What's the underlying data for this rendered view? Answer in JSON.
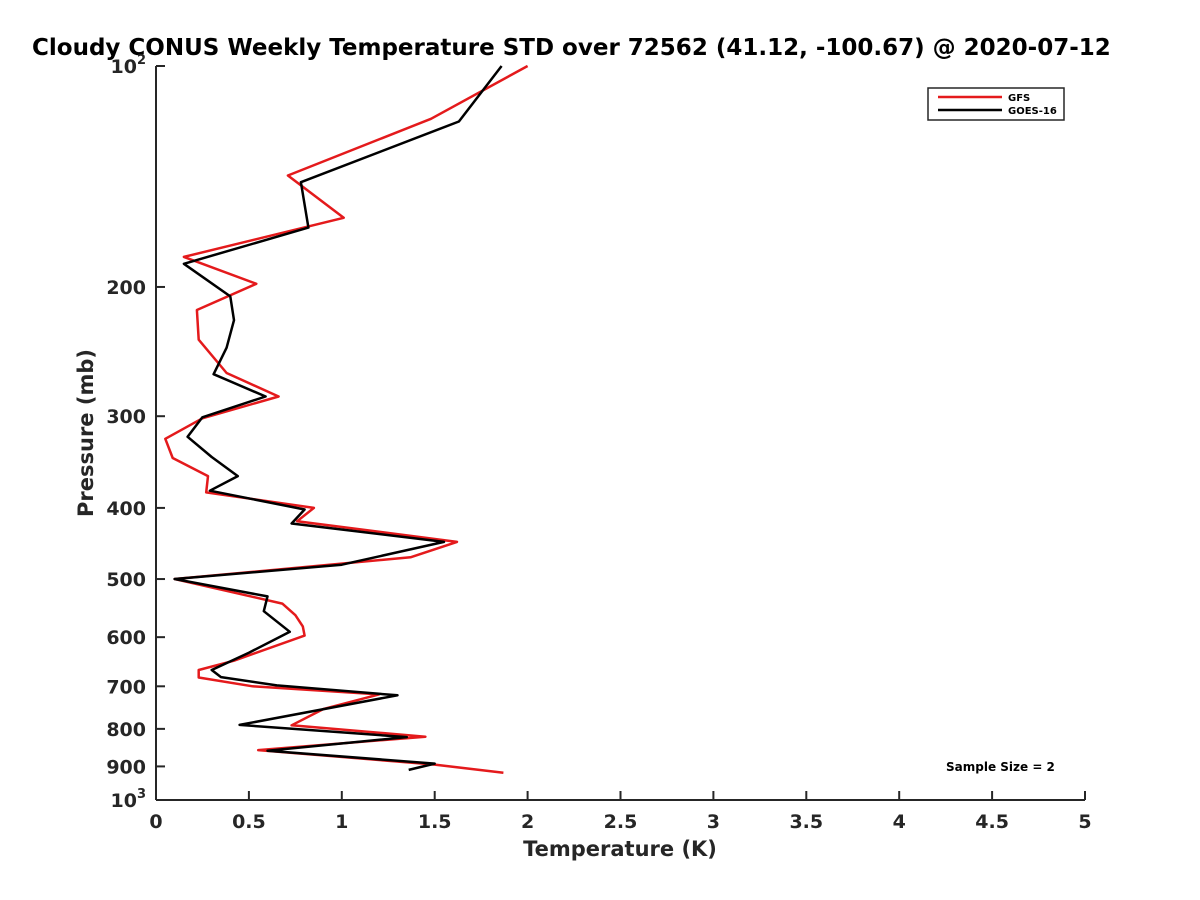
{
  "chart_data": {
    "type": "line",
    "title": "Cloudy CONUS Weekly Temperature STD over 72562 (41.12, -100.67) @ 2020-07-12",
    "xlabel": "Temperature (K)",
    "ylabel": "Pressure (mb)",
    "xlim": [
      0,
      5
    ],
    "ylim": [
      100,
      1000
    ],
    "y_scale": "log",
    "y_reversed": true,
    "grid": false,
    "legend_position": "top-right",
    "x_ticks": [
      "0",
      "0.5",
      "1",
      "1.5",
      "2",
      "2.5",
      "3",
      "3.5",
      "4",
      "4.5",
      "5"
    ],
    "x_tick_values": [
      0,
      0.5,
      1,
      1.5,
      2,
      2.5,
      3,
      3.5,
      4,
      4.5,
      5
    ],
    "y_ticks": [
      {
        "value": 100,
        "label": "10",
        "sup": "2"
      },
      {
        "value": 200,
        "label": "200",
        "sup": ""
      },
      {
        "value": 300,
        "label": "300",
        "sup": ""
      },
      {
        "value": 400,
        "label": "400",
        "sup": ""
      },
      {
        "value": 500,
        "label": "500",
        "sup": ""
      },
      {
        "value": 600,
        "label": "600",
        "sup": ""
      },
      {
        "value": 700,
        "label": "700",
        "sup": ""
      },
      {
        "value": 800,
        "label": "800",
        "sup": ""
      },
      {
        "value": 900,
        "label": "900",
        "sup": ""
      },
      {
        "value": 1000,
        "label": "10",
        "sup": "3"
      }
    ],
    "annotation": "Sample Size = 2",
    "series": [
      {
        "name": "GFS",
        "color": "#e41a1c",
        "points": [
          [
            2.0,
            100
          ],
          [
            1.48,
            118
          ],
          [
            0.71,
            141
          ],
          [
            1.01,
            161
          ],
          [
            0.15,
            182
          ],
          [
            0.54,
            198
          ],
          [
            0.22,
            215
          ],
          [
            0.23,
            236
          ],
          [
            0.38,
            262
          ],
          [
            0.66,
            282
          ],
          [
            0.25,
            302
          ],
          [
            0.05,
            322
          ],
          [
            0.09,
            342
          ],
          [
            0.28,
            362
          ],
          [
            0.27,
            381
          ],
          [
            0.85,
            400
          ],
          [
            0.76,
            417
          ],
          [
            1.62,
            445
          ],
          [
            1.37,
            467
          ],
          [
            0.1,
            500
          ],
          [
            0.68,
            540
          ],
          [
            0.75,
            560
          ],
          [
            0.79,
            580
          ],
          [
            0.8,
            597
          ],
          [
            0.42,
            646
          ],
          [
            0.23,
            665
          ],
          [
            0.23,
            681
          ],
          [
            0.52,
            700
          ],
          [
            1.2,
            718
          ],
          [
            0.9,
            752
          ],
          [
            0.73,
            791
          ],
          [
            1.45,
            820
          ],
          [
            0.55,
            855
          ],
          [
            1.5,
            895
          ],
          [
            1.87,
            918
          ]
        ]
      },
      {
        "name": "GOES-16",
        "color": "#000000",
        "points": [
          [
            1.86,
            100
          ],
          [
            1.63,
            119
          ],
          [
            0.78,
            144
          ],
          [
            0.82,
            166
          ],
          [
            0.15,
            186
          ],
          [
            0.4,
            206
          ],
          [
            0.42,
            222
          ],
          [
            0.38,
            242
          ],
          [
            0.31,
            263
          ],
          [
            0.59,
            282
          ],
          [
            0.25,
            301
          ],
          [
            0.17,
            320
          ],
          [
            0.3,
            341
          ],
          [
            0.44,
            362
          ],
          [
            0.29,
            379
          ],
          [
            0.8,
            402
          ],
          [
            0.73,
            420
          ],
          [
            1.55,
            445
          ],
          [
            1.0,
            478
          ],
          [
            0.1,
            500
          ],
          [
            0.6,
            528
          ],
          [
            0.58,
            553
          ],
          [
            0.72,
            590
          ],
          [
            0.5,
            630
          ],
          [
            0.3,
            665
          ],
          [
            0.35,
            680
          ],
          [
            0.65,
            698
          ],
          [
            1.3,
            720
          ],
          [
            0.45,
            790
          ],
          [
            1.35,
            821
          ],
          [
            0.6,
            857
          ],
          [
            1.5,
            892
          ],
          [
            1.36,
            910
          ]
        ]
      }
    ]
  }
}
